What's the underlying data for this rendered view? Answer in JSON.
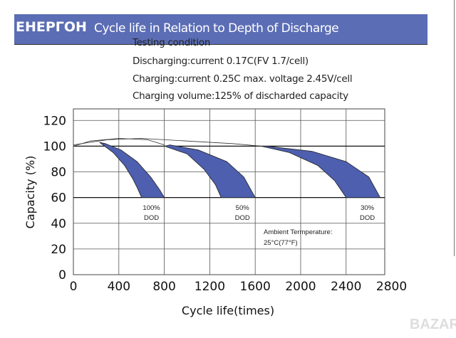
{
  "watermark": "ЕНЕРГОН",
  "header": {
    "title": "Cycle life in Relation to Depth of Discharge"
  },
  "conditions": [
    "Testing condition",
    "Discharging:current 0.17C(FV 1.7/cell)",
    "Charging:current 0.25C max. voltage 2.45V/cell",
    "Charging volume:125% of discharded capacity"
  ],
  "logo": "BAZAR",
  "chart_data": {
    "type": "area",
    "xlabel": "Cycle life(times)",
    "ylabel": "Capacity (%)",
    "xlim": [
      0,
      2740
    ],
    "ylim": [
      0,
      129
    ],
    "xticks": [
      0,
      400,
      800,
      1200,
      1600,
      2000,
      2400,
      2800
    ],
    "yticks": [
      0,
      20,
      40,
      60,
      80,
      100,
      120
    ],
    "grid": true,
    "fill_color": "#4d5fae",
    "annotation": [
      "Ambient Termperature:",
      "25°C(77°F)"
    ],
    "envelopes": [
      [
        [
          0,
          100
        ],
        [
          150,
          104
        ],
        [
          400,
          106
        ],
        [
          650,
          105
        ],
        [
          800,
          101
        ]
      ],
      [
        [
          0,
          101
        ],
        [
          300,
          105
        ],
        [
          600,
          106
        ],
        [
          1000,
          104
        ],
        [
          1400,
          102
        ],
        [
          1650,
          100
        ]
      ]
    ],
    "series": [
      {
        "name": "100% DOD",
        "label": [
          "100%",
          "DOD"
        ],
        "lower": [
          [
            230,
            103
          ],
          [
            350,
            95
          ],
          [
            450,
            85
          ],
          [
            520,
            75
          ],
          [
            560,
            68
          ],
          [
            600,
            60
          ]
        ],
        "upper": [
          [
            230,
            103
          ],
          [
            280,
            102
          ],
          [
            420,
            97
          ],
          [
            560,
            88
          ],
          [
            680,
            76
          ],
          [
            760,
            66
          ],
          [
            800,
            60
          ]
        ]
      },
      {
        "name": "50% DOD",
        "label": [
          "50%",
          "DOD"
        ],
        "lower": [
          [
            800,
            100
          ],
          [
            1000,
            94
          ],
          [
            1150,
            82
          ],
          [
            1250,
            70
          ],
          [
            1300,
            60
          ]
        ],
        "upper": [
          [
            800,
            100
          ],
          [
            850,
            101
          ],
          [
            1100,
            97
          ],
          [
            1350,
            88
          ],
          [
            1500,
            76
          ],
          [
            1600,
            60
          ]
        ]
      },
      {
        "name": "30% DOD",
        "label": [
          "30%",
          "DOD"
        ],
        "lower": [
          [
            1650,
            100
          ],
          [
            1900,
            95
          ],
          [
            2150,
            85
          ],
          [
            2300,
            73
          ],
          [
            2400,
            60
          ]
        ],
        "upper": [
          [
            1650,
            100
          ],
          [
            1700,
            100
          ],
          [
            2100,
            96
          ],
          [
            2400,
            88
          ],
          [
            2600,
            76
          ],
          [
            2700,
            60
          ]
        ]
      }
    ]
  }
}
